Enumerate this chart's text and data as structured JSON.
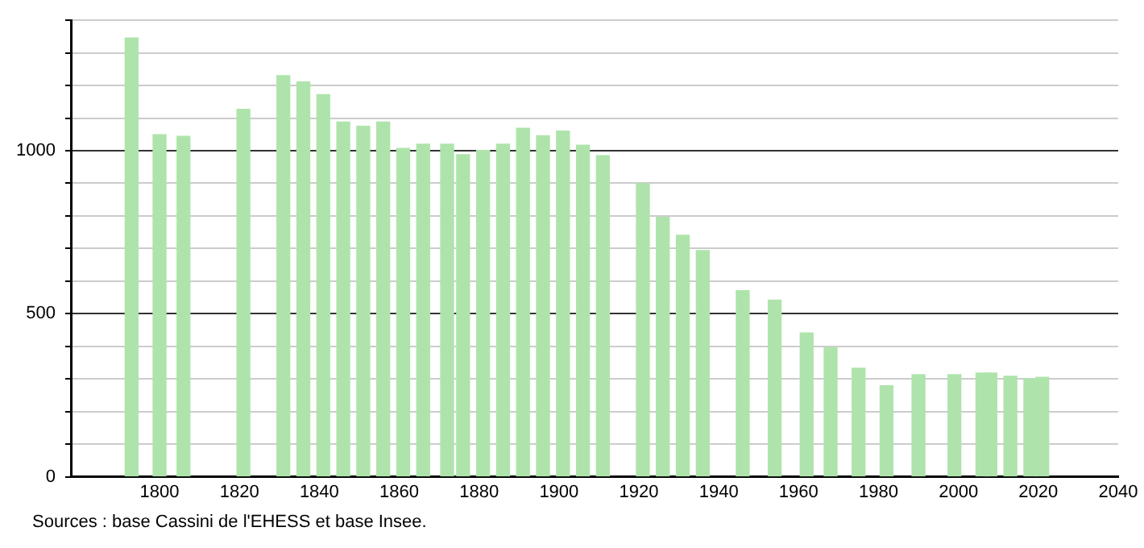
{
  "chart_data": {
    "type": "bar",
    "color": "#aee4ab",
    "x": [
      1793,
      1800,
      1806,
      1821,
      1831,
      1836,
      1841,
      1846,
      1851,
      1856,
      1861,
      1866,
      1872,
      1876,
      1881,
      1886,
      1891,
      1896,
      1901,
      1906,
      1911,
      1921,
      1926,
      1931,
      1936,
      1946,
      1954,
      1962,
      1968,
      1975,
      1982,
      1990,
      1999,
      2006,
      2008,
      2013,
      2018,
      2021
    ],
    "values": [
      1346,
      1049,
      1044,
      1127,
      1230,
      1211,
      1172,
      1088,
      1075,
      1088,
      1007,
      1020,
      1020,
      988,
      1001,
      1020,
      1069,
      1046,
      1060,
      1017,
      985,
      899,
      796,
      741,
      694,
      571,
      542,
      441,
      396,
      333,
      279,
      313,
      313,
      318,
      318,
      308,
      300,
      305
    ],
    "xlim": [
      1778,
      2040
    ],
    "xticks": [
      1800,
      1820,
      1840,
      1860,
      1880,
      1900,
      1920,
      1940,
      1960,
      1980,
      2000,
      2020,
      2040
    ],
    "ylim": [
      0,
      1400
    ],
    "yticks": [
      0,
      {
        "value": 100,
        "label": null
      },
      {
        "value": 200,
        "label": null
      },
      {
        "value": 300,
        "label": null
      },
      {
        "value": 400,
        "label": null
      },
      500,
      {
        "value": 600,
        "label": null
      },
      {
        "value": 700,
        "label": null
      },
      {
        "value": 800,
        "label": null
      },
      {
        "value": 900,
        "label": null
      },
      1000,
      {
        "value": 1100,
        "label": null
      },
      {
        "value": 1200,
        "label": null
      },
      {
        "value": 1300,
        "label": null
      },
      {
        "value": 1400,
        "label": null
      }
    ],
    "grid": "y",
    "annotations": [
      "Sources : base Cassini de l'EHESS et base Insee."
    ]
  }
}
